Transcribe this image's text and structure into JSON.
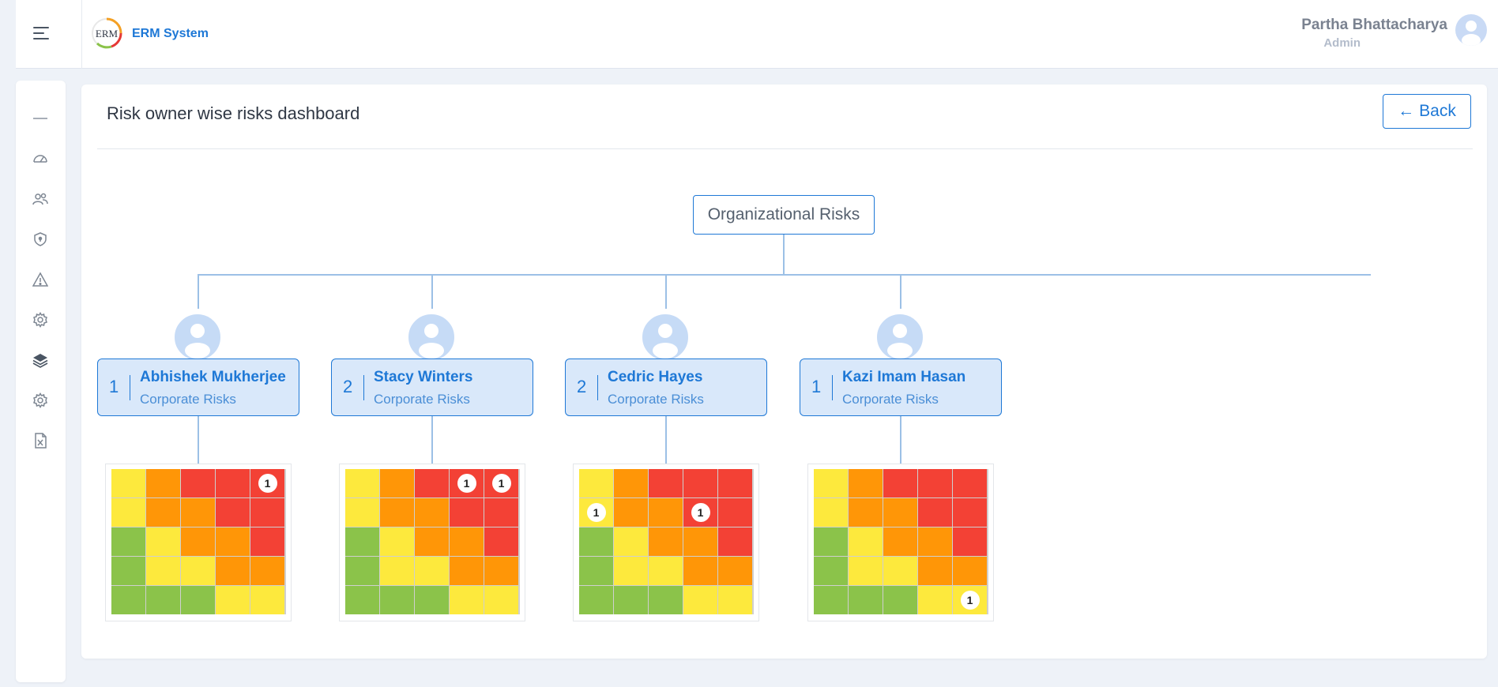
{
  "header": {
    "app_title": "ERM System",
    "logo_text": "ERM",
    "user_name": "Partha Bhattacharya",
    "user_role": "Admin"
  },
  "sidebar": {
    "items": [
      {
        "icon": "minus-icon"
      },
      {
        "icon": "dashboard-gauge-icon"
      },
      {
        "icon": "users-icon"
      },
      {
        "icon": "shield-icon"
      },
      {
        "icon": "warning-triangle-icon"
      },
      {
        "icon": "settings-gear-icon"
      },
      {
        "icon": "layers-icon"
      },
      {
        "icon": "settings-gear-icon"
      },
      {
        "icon": "excel-file-icon"
      }
    ]
  },
  "page": {
    "title": "Risk owner wise risks dashboard",
    "back_label": "Back"
  },
  "org_chart": {
    "root_label": "Organizational Risks",
    "owners": [
      {
        "name": "Abhishek Mukherjee",
        "count": "1",
        "category": "Corporate Risks",
        "badges": [
          {
            "row": 0,
            "col": 4,
            "value": "1"
          }
        ]
      },
      {
        "name": "Stacy Winters",
        "count": "2",
        "category": "Corporate Risks",
        "badges": [
          {
            "row": 0,
            "col": 3,
            "value": "1"
          },
          {
            "row": 0,
            "col": 4,
            "value": "1"
          }
        ]
      },
      {
        "name": "Cedric Hayes",
        "count": "2",
        "category": "Corporate Risks",
        "badges": [
          {
            "row": 1,
            "col": 0,
            "value": "1"
          },
          {
            "row": 1,
            "col": 3,
            "value": "1"
          }
        ]
      },
      {
        "name": "Kazi Imam Hasan",
        "count": "1",
        "category": "Corporate Risks",
        "badges": [
          {
            "row": 4,
            "col": 4,
            "value": "1"
          }
        ]
      }
    ]
  },
  "heatmap_colors": {
    "Y": "#fde93d",
    "O": "#ff9607",
    "R": "#f34135",
    "G": "#8bc34a"
  },
  "heatmap_pattern": [
    [
      "Y",
      "O",
      "R",
      "R",
      "R"
    ],
    [
      "Y",
      "O",
      "O",
      "R",
      "R"
    ],
    [
      "G",
      "Y",
      "O",
      "O",
      "R"
    ],
    [
      "G",
      "Y",
      "Y",
      "O",
      "O"
    ],
    [
      "G",
      "G",
      "G",
      "Y",
      "Y"
    ]
  ]
}
